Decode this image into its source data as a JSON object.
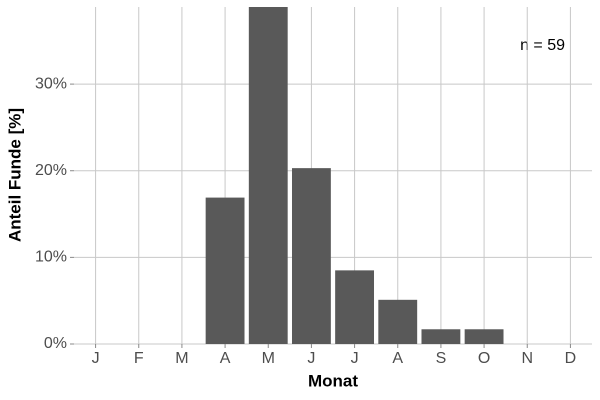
{
  "chart_data": {
    "type": "bar",
    "annotation": "n = 59",
    "x_label": "Monat",
    "y_label": "Anteil Funde [%]",
    "categories": [
      "J",
      "F",
      "M",
      "A",
      "M",
      "J",
      "J",
      "A",
      "S",
      "O",
      "N",
      "D"
    ],
    "values": [
      0,
      0,
      0,
      16.9,
      38.9,
      20.3,
      8.5,
      5.1,
      1.7,
      1.7,
      0,
      0
    ],
    "color": "#595959",
    "ylim": [
      0,
      38.9
    ],
    "yticks": [
      {
        "value": 0,
        "label": "0%"
      },
      {
        "value": 10,
        "label": "10%"
      },
      {
        "value": 20,
        "label": "20%"
      },
      {
        "value": 30,
        "label": "30%"
      }
    ],
    "grid": true
  }
}
